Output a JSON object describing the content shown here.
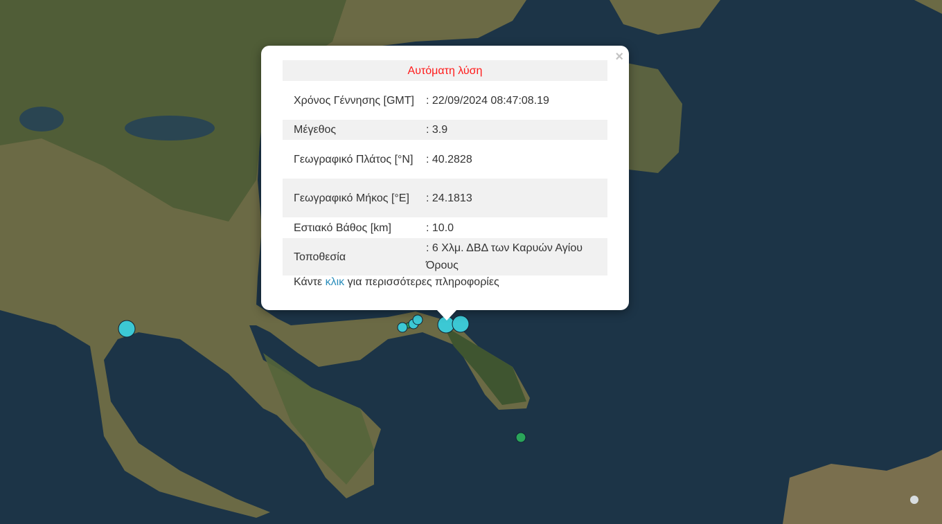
{
  "popup": {
    "title": "Αυτόματη λύση",
    "close_icon": "×",
    "rows": [
      {
        "label": "Χρόνος Γέννησης [GMT]",
        "value": ": 22/09/2024 08:47:08.19"
      },
      {
        "label": "Μέγεθος",
        "value": ": 3.9"
      },
      {
        "label": "Γεωγραφικό Πλάτος [°N]",
        "value": ": 40.2828"
      },
      {
        "label": "Γεωγραφικό Μήκος [°E]",
        "value": ": 24.1813"
      },
      {
        "label": "Εστιακό Βάθος [km]",
        "value": ": 10.0"
      },
      {
        "label": "Τοποθεσία",
        "value": ": 6 Χλμ. ΔΒΔ των Καρυών Αγίου Όρους"
      }
    ],
    "more_prefix": "Κάντε ",
    "more_link": "κλικ",
    "more_suffix": " για περισσότερες πληροφορίες"
  },
  "colors": {
    "title": "#ff1a1a",
    "link": "#2a8dbb",
    "marker_recent": "#3cc8d4",
    "marker_older": "#2aa55a",
    "sea": "#1c3447"
  }
}
